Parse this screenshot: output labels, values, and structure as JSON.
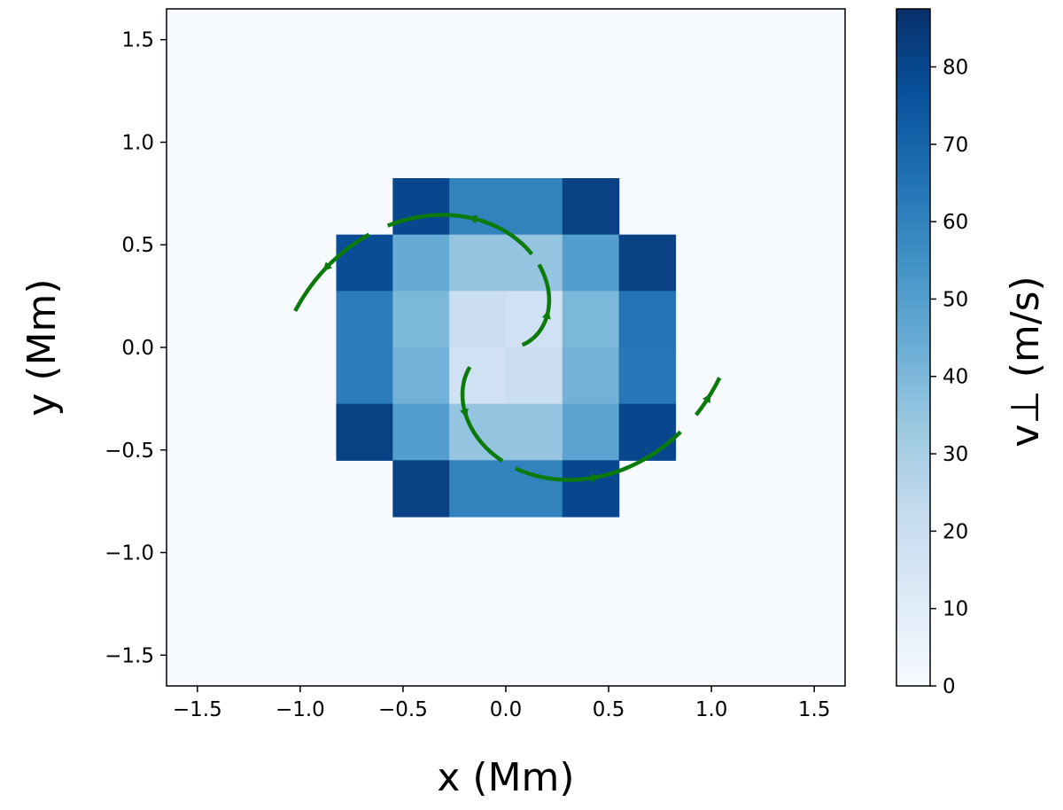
{
  "chart_data": {
    "type": "heatmap",
    "title": "",
    "xlabel": "x (Mm)",
    "ylabel": "y (Mm)",
    "xlim": [
      -1.65,
      1.65
    ],
    "ylim": [
      -1.65,
      1.65
    ],
    "xticks": [
      "−1.5",
      "−1.0",
      "−0.5",
      "0.0",
      "0.5",
      "1.0",
      "1.5"
    ],
    "yticks": [
      "1.5",
      "1.0",
      "0.5",
      "0.0",
      "−0.5",
      "−1.0",
      "−1.5"
    ],
    "grid": false,
    "background_value": 0,
    "heatmap": {
      "x_edges": [
        -0.825,
        -0.55,
        -0.275,
        0.0,
        0.275,
        0.55,
        0.825
      ],
      "y_edges": [
        0.825,
        0.55,
        0.275,
        0.0,
        -0.275,
        -0.55,
        -0.825
      ],
      "values": [
        [
          null,
          80,
          60,
          60,
          82,
          null
        ],
        [
          78,
          45,
          35,
          35,
          50,
          82
        ],
        [
          62,
          40,
          20,
          18,
          40,
          65
        ],
        [
          62,
          42,
          18,
          20,
          42,
          64
        ],
        [
          82,
          50,
          35,
          35,
          48,
          80
        ],
        [
          null,
          82,
          60,
          60,
          80,
          null
        ]
      ]
    },
    "colorbar": {
      "label": "v⊥ (m/s)",
      "min": 0,
      "max": 87.5,
      "ticks": [
        0,
        10,
        20,
        30,
        40,
        50,
        60,
        70,
        80
      ],
      "colormap": "Blues"
    },
    "streamlines": {
      "color": "#0b7a0b",
      "pattern": "two-armed outward spiral, counter-clockwise",
      "extent_radius": 1.05
    }
  }
}
